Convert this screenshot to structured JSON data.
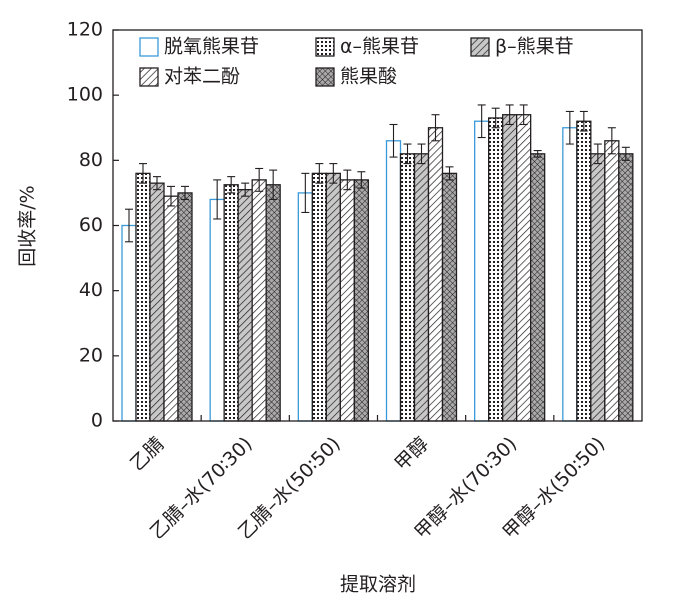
{
  "chart_data": {
    "type": "bar",
    "x_label": "提取溶剂",
    "y_label": "回收率/%",
    "categories": [
      "乙腈",
      "乙腈–水(70∶30)",
      "乙腈–水(50∶50)",
      "甲醇",
      "甲醇–水(70∶30)",
      "甲醇–水(50∶50)"
    ],
    "series": [
      {
        "name": "脱氧熊果苷",
        "color": "#3a9ad9",
        "pattern": "none",
        "values": [
          60,
          68,
          70,
          86,
          92,
          90
        ],
        "errors": [
          5,
          6,
          6,
          5,
          5,
          5
        ]
      },
      {
        "name": "α–熊果苷",
        "color": "#231f20",
        "pattern": "dots",
        "values": [
          76,
          72.5,
          76,
          82,
          93,
          92
        ],
        "errors": [
          3,
          2.5,
          3,
          3,
          3,
          3
        ]
      },
      {
        "name": "β–熊果苷",
        "color": "#231f20",
        "pattern": "gray-hatch",
        "values": [
          73,
          71,
          76,
          82,
          94,
          82
        ],
        "errors": [
          2,
          2,
          3,
          3,
          3,
          3
        ]
      },
      {
        "name": "对苯二酚",
        "color": "#231f20",
        "pattern": "hatch",
        "values": [
          69,
          74,
          74,
          90,
          94,
          86
        ],
        "errors": [
          3,
          3.5,
          3,
          4,
          3,
          4
        ]
      },
      {
        "name": "熊果酸",
        "color": "#231f20",
        "pattern": "cross",
        "values": [
          70,
          72.5,
          74,
          76,
          82,
          82
        ],
        "errors": [
          2,
          4.5,
          2.5,
          2,
          1,
          2
        ]
      }
    ],
    "ylim": [
      0,
      120
    ],
    "yticks": [
      0,
      20,
      40,
      60,
      80,
      100,
      120
    ]
  }
}
